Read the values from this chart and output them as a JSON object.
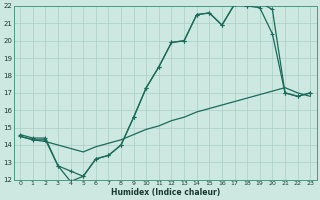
{
  "xlabel": "Humidex (Indice chaleur)",
  "bg_color": "#cde8e0",
  "grid_color": "#aacfc5",
  "line_color": "#1a6b5a",
  "spine_color": "#4a9a85",
  "xlim": [
    -0.5,
    23.5
  ],
  "ylim": [
    12,
    22
  ],
  "xticks": [
    0,
    1,
    2,
    3,
    4,
    5,
    6,
    7,
    8,
    9,
    10,
    11,
    12,
    13,
    14,
    15,
    16,
    17,
    18,
    19,
    20,
    21,
    22,
    23
  ],
  "yticks": [
    12,
    13,
    14,
    15,
    16,
    17,
    18,
    19,
    20,
    21,
    22
  ],
  "line1_x": [
    0,
    1,
    2,
    3,
    4,
    5,
    6,
    7,
    8,
    9,
    10,
    11,
    12,
    13,
    14,
    15,
    16,
    17,
    18,
    19,
    20,
    21,
    22,
    23
  ],
  "line1_y": [
    14.6,
    14.4,
    14.4,
    12.8,
    12.5,
    12.2,
    13.2,
    13.4,
    14.0,
    15.6,
    17.3,
    18.5,
    19.9,
    20.0,
    21.5,
    21.6,
    20.9,
    22.1,
    22.0,
    21.9,
    20.4,
    17.0,
    16.8,
    17.0
  ],
  "line2_x": [
    0,
    1,
    2,
    3,
    4,
    5,
    6,
    7,
    8,
    9,
    10,
    11,
    12,
    13,
    14,
    15,
    16,
    17,
    18,
    19,
    20,
    21,
    22,
    23
  ],
  "line2_y": [
    14.5,
    14.3,
    14.3,
    12.8,
    11.9,
    12.2,
    13.2,
    13.4,
    14.0,
    15.6,
    17.3,
    18.5,
    19.9,
    20.0,
    21.5,
    21.6,
    20.9,
    22.1,
    22.0,
    22.2,
    21.8,
    17.0,
    16.8,
    17.0
  ],
  "line3_x": [
    0,
    1,
    2,
    3,
    4,
    5,
    6,
    7,
    8,
    9,
    10,
    11,
    12,
    13,
    14,
    15,
    16,
    17,
    18,
    19,
    20,
    21,
    22,
    23
  ],
  "line3_y": [
    14.5,
    14.3,
    14.2,
    14.0,
    13.8,
    13.6,
    13.9,
    14.1,
    14.3,
    14.6,
    14.9,
    15.1,
    15.4,
    15.6,
    15.9,
    16.1,
    16.3,
    16.5,
    16.7,
    16.9,
    17.1,
    17.3,
    17.0,
    16.8
  ]
}
